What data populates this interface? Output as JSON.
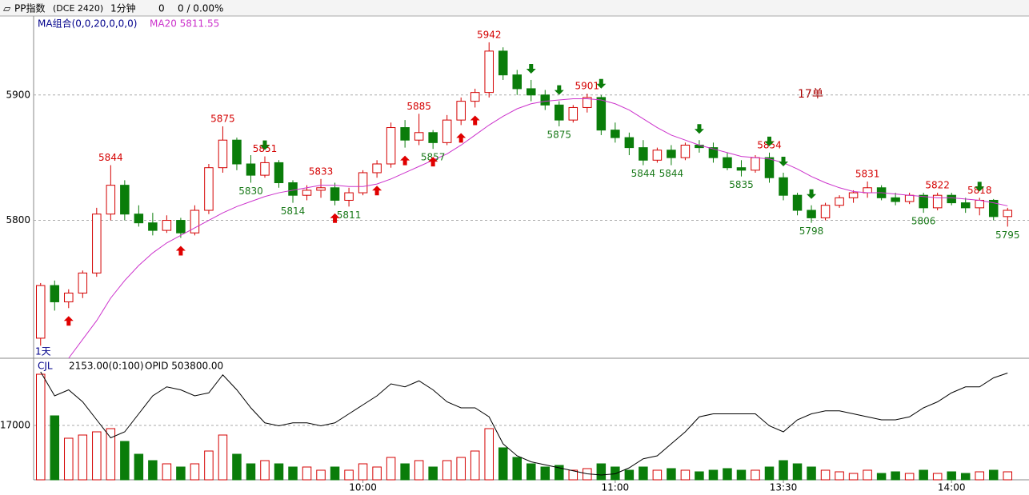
{
  "header": {
    "name": "PP指数",
    "code": "(DCE 2420)",
    "period": "1分钟",
    "price": "0",
    "change": "0 / 0.00%"
  },
  "chart_data": {
    "type": "candlestick",
    "ma_label": "MA组合(0,0,20,0,0,0)",
    "ma_name": "MA20 5811.55",
    "range_label": "1天",
    "note": "17单",
    "volume_label": "CJL",
    "volume_info": "2153.00(0:100)",
    "opid_info": "OPID 503800.00",
    "categories": [
      null,
      null,
      null,
      null,
      null,
      null,
      null,
      null,
      null,
      null,
      null,
      null,
      null,
      null,
      null,
      null,
      null,
      null,
      null,
      null,
      null,
      null,
      null,
      "10:00",
      null,
      null,
      null,
      null,
      null,
      null,
      null,
      null,
      null,
      null,
      null,
      null,
      null,
      null,
      null,
      null,
      null,
      "11:00",
      null,
      null,
      null,
      null,
      null,
      null,
      null,
      null,
      null,
      null,
      null,
      "13:30",
      null,
      null,
      null,
      null,
      null,
      null,
      null,
      null,
      null,
      null,
      null,
      "14:00",
      null,
      null,
      null,
      null
    ],
    "candles": [
      [
        5706,
        5750,
        5700,
        5748
      ],
      [
        5748,
        5752,
        5728,
        5735
      ],
      [
        5735,
        5745,
        5730,
        5742
      ],
      [
        5742,
        5760,
        5738,
        5758
      ],
      [
        5758,
        5810,
        5755,
        5805
      ],
      [
        5805,
        5844,
        5800,
        5828
      ],
      [
        5828,
        5832,
        5800,
        5805
      ],
      [
        5805,
        5812,
        5795,
        5798
      ],
      [
        5798,
        5806,
        5788,
        5792
      ],
      [
        5792,
        5804,
        5790,
        5800
      ],
      [
        5800,
        5802,
        5786,
        5790
      ],
      [
        5790,
        5812,
        5788,
        5808
      ],
      [
        5808,
        5845,
        5805,
        5842
      ],
      [
        5842,
        5875,
        5838,
        5864
      ],
      [
        5864,
        5866,
        5840,
        5845
      ],
      [
        5845,
        5852,
        5830,
        5836
      ],
      [
        5836,
        5851,
        5834,
        5846
      ],
      [
        5846,
        5848,
        5826,
        5830
      ],
      [
        5830,
        5832,
        5814,
        5820
      ],
      [
        5820,
        5828,
        5816,
        5824
      ],
      [
        5824,
        5833,
        5818,
        5826
      ],
      [
        5826,
        5830,
        5812,
        5816
      ],
      [
        5816,
        5826,
        5811,
        5822
      ],
      [
        5822,
        5840,
        5820,
        5838
      ],
      [
        5838,
        5848,
        5834,
        5845
      ],
      [
        5845,
        5878,
        5842,
        5874
      ],
      [
        5874,
        5880,
        5858,
        5864
      ],
      [
        5864,
        5885,
        5860,
        5870
      ],
      [
        5870,
        5872,
        5857,
        5862
      ],
      [
        5862,
        5884,
        5860,
        5880
      ],
      [
        5880,
        5898,
        5876,
        5895
      ],
      [
        5895,
        5905,
        5890,
        5902
      ],
      [
        5902,
        5942,
        5898,
        5935
      ],
      [
        5935,
        5938,
        5912,
        5916
      ],
      [
        5916,
        5920,
        5900,
        5905
      ],
      [
        5905,
        5912,
        5895,
        5900
      ],
      [
        5900,
        5904,
        5888,
        5892
      ],
      [
        5892,
        5895,
        5875,
        5880
      ],
      [
        5880,
        5892,
        5878,
        5890
      ],
      [
        5890,
        5901,
        5886,
        5898
      ],
      [
        5898,
        5900,
        5868,
        5872
      ],
      [
        5872,
        5878,
        5862,
        5866
      ],
      [
        5866,
        5870,
        5852,
        5858
      ],
      [
        5858,
        5864,
        5844,
        5848
      ],
      [
        5848,
        5858,
        5846,
        5856
      ],
      [
        5856,
        5860,
        5844,
        5850
      ],
      [
        5850,
        5862,
        5848,
        5860
      ],
      [
        5860,
        5864,
        5854,
        5858
      ],
      [
        5858,
        5862,
        5846,
        5850
      ],
      [
        5850,
        5854,
        5840,
        5842
      ],
      [
        5842,
        5848,
        5835,
        5840
      ],
      [
        5840,
        5852,
        5838,
        5850
      ],
      [
        5850,
        5854,
        5830,
        5834
      ],
      [
        5834,
        5838,
        5816,
        5820
      ],
      [
        5820,
        5822,
        5804,
        5808
      ],
      [
        5808,
        5812,
        5798,
        5802
      ],
      [
        5802,
        5814,
        5800,
        5812
      ],
      [
        5812,
        5820,
        5810,
        5818
      ],
      [
        5818,
        5824,
        5814,
        5822
      ],
      [
        5822,
        5831,
        5818,
        5826
      ],
      [
        5826,
        5828,
        5816,
        5818
      ],
      [
        5818,
        5822,
        5812,
        5815
      ],
      [
        5815,
        5822,
        5813,
        5820
      ],
      [
        5820,
        5822,
        5806,
        5810
      ],
      [
        5810,
        5822,
        5808,
        5820
      ],
      [
        5820,
        5822,
        5812,
        5814
      ],
      [
        5814,
        5818,
        5806,
        5810
      ],
      [
        5810,
        5818,
        5804,
        5816
      ],
      [
        5816,
        5817,
        5800,
        5803
      ],
      [
        5803,
        5810,
        5795,
        5808
      ]
    ],
    "ma20": [
      null,
      null,
      5690,
      5705,
      5720,
      5738,
      5752,
      5764,
      5774,
      5782,
      5788,
      5794,
      5800,
      5806,
      5811,
      5815,
      5819,
      5822,
      5824,
      5826,
      5828,
      5828,
      5827,
      5827,
      5829,
      5833,
      5838,
      5843,
      5848,
      5853,
      5860,
      5868,
      5876,
      5883,
      5889,
      5893,
      5895,
      5896,
      5897,
      5897,
      5896,
      5893,
      5888,
      5881,
      5874,
      5868,
      5864,
      5860,
      5857,
      5854,
      5851,
      5850,
      5849,
      5846,
      5841,
      5835,
      5830,
      5826,
      5823,
      5822,
      5822,
      5821,
      5820,
      5819,
      5818,
      5818,
      5817,
      5816,
      5814,
      5811.55
    ],
    "ma_color": "#cc33cc",
    "ylim": [
      5690,
      5963
    ],
    "yticks": [
      5800,
      5900
    ],
    "volumes": [
      33000,
      20000,
      13000,
      14000,
      15000,
      16000,
      12000,
      8000,
      6000,
      5000,
      4000,
      5000,
      9000,
      14000,
      8000,
      5000,
      6000,
      5000,
      4000,
      4000,
      3000,
      4000,
      3000,
      5000,
      4000,
      7000,
      5000,
      6000,
      4000,
      6000,
      7000,
      9000,
      16000,
      10000,
      7000,
      5000,
      4000,
      4500,
      3000,
      3500,
      5000,
      4000,
      3000,
      4000,
      3000,
      3500,
      3000,
      2500,
      3000,
      3500,
      3000,
      3000,
      4000,
      6000,
      5000,
      4000,
      3000,
      2500,
      2000,
      3000,
      2000,
      2500,
      2000,
      3000,
      2000,
      2500,
      2000,
      2500,
      3000,
      2500
    ],
    "vlim": [
      0,
      37500
    ],
    "vticks": [
      17000
    ],
    "opid": [
      508000,
      504000,
      505000,
      503000,
      500000,
      497000,
      498000,
      501000,
      504000,
      505500,
      505000,
      504000,
      504500,
      507500,
      505000,
      502000,
      499500,
      499000,
      499500,
      499500,
      499000,
      499500,
      501000,
      502500,
      504000,
      506000,
      505500,
      506500,
      505000,
      503000,
      502000,
      502000,
      500500,
      496000,
      494000,
      493000,
      492500,
      492000,
      491500,
      491000,
      490800,
      491000,
      492000,
      493500,
      494000,
      496000,
      498000,
      500500,
      501000,
      501000,
      501000,
      501000,
      499000,
      498000,
      500000,
      501000,
      501500,
      501500,
      501000,
      500500,
      500000,
      500000,
      500500,
      502000,
      503000,
      504500,
      505500,
      505500,
      507000,
      507800
    ],
    "opid_lim": [
      490000,
      510000
    ],
    "up_color": "#d40000",
    "down_color": "#0a7d0a",
    "annotations": [
      {
        "candle": 5,
        "label": "5844",
        "at": "high"
      },
      {
        "candle": 13,
        "label": "5875",
        "at": "high"
      },
      {
        "candle": 15,
        "label": "5830",
        "at": "low"
      },
      {
        "candle": 16,
        "label": "5851",
        "at": "high"
      },
      {
        "candle": 18,
        "label": "5814",
        "at": "low"
      },
      {
        "candle": 20,
        "label": "5833",
        "at": "high"
      },
      {
        "candle": 22,
        "label": "5811",
        "at": "low"
      },
      {
        "candle": 27,
        "label": "5885",
        "at": "high"
      },
      {
        "candle": 28,
        "label": "5857",
        "at": "low"
      },
      {
        "candle": 32,
        "label": "5942",
        "at": "high"
      },
      {
        "candle": 37,
        "label": "5875",
        "at": "low"
      },
      {
        "candle": 39,
        "label": "5901",
        "at": "high"
      },
      {
        "candle": 43,
        "label": "5844",
        "at": "low"
      },
      {
        "candle": 45,
        "label": "5844",
        "at": "low"
      },
      {
        "candle": 50,
        "label": "5835",
        "at": "low"
      },
      {
        "candle": 52,
        "label": "5854",
        "at": "high"
      },
      {
        "candle": 55,
        "label": "5798",
        "at": "low"
      },
      {
        "candle": 59,
        "label": "5831",
        "at": "high"
      },
      {
        "candle": 63,
        "label": "5806",
        "at": "low"
      },
      {
        "candle": 64,
        "label": "5822",
        "at": "high"
      },
      {
        "candle": 67,
        "label": "5818",
        "at": "high"
      },
      {
        "candle": 69,
        "label": "5795",
        "at": "low"
      }
    ],
    "buy_signals": [
      2,
      10,
      21,
      24,
      26,
      28,
      30,
      31
    ],
    "sell_signals": [
      16,
      35,
      37,
      40,
      47,
      52,
      53,
      55,
      67
    ]
  }
}
